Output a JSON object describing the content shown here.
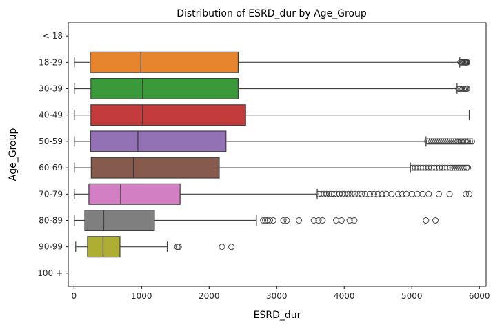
{
  "chart_data": {
    "type": "boxplot",
    "orientation": "horizontal",
    "title": "Distribution of ESRD_dur by Age_Group",
    "xlabel": "ESRD_dur",
    "ylabel": "Age_Group",
    "xlim": [
      -85,
      6100
    ],
    "xticks": [
      0,
      1000,
      2000,
      3000,
      4000,
      5000,
      6000
    ],
    "xtick_labels": [
      "0",
      "1000",
      "2000",
      "3000",
      "4000",
      "5000",
      "6000"
    ],
    "grid": false,
    "categories": [
      "< 18",
      "18-29",
      "30-39",
      "40-49",
      "50-59",
      "60-69",
      "70-79",
      "80-89",
      "90-99",
      "100 +"
    ],
    "boxes": [
      {
        "category": "< 18",
        "empty": true
      },
      {
        "category": "18-29",
        "color": "#e6852d",
        "whisker_low": 5,
        "q1": 240,
        "median": 990,
        "q3": 2430,
        "whisker_high": 5710,
        "outliers": [
          5720,
          5740,
          5760,
          5775,
          5790,
          5800,
          5810,
          5820
        ]
      },
      {
        "category": "30-39",
        "color": "#3a9a3a",
        "whisker_low": 5,
        "q1": 250,
        "median": 1015,
        "q3": 2430,
        "whisker_high": 5670,
        "outliers": [
          5690,
          5710,
          5730,
          5750,
          5770,
          5790,
          5805,
          5820
        ]
      },
      {
        "category": "40-49",
        "color": "#c43b3b",
        "whisker_low": 5,
        "q1": 250,
        "median": 1015,
        "q3": 2540,
        "whisker_high": 5850,
        "outliers": []
      },
      {
        "category": "50-59",
        "color": "#9271b5",
        "whisker_low": 5,
        "q1": 245,
        "median": 945,
        "q3": 2250,
        "whisker_high": 5210,
        "outliers": [
          5230,
          5260,
          5290,
          5320,
          5350,
          5380,
          5410,
          5440,
          5470,
          5500,
          5530,
          5560,
          5590,
          5620,
          5650,
          5680,
          5700,
          5720,
          5740,
          5760,
          5780,
          5800,
          5830,
          5860,
          5890
        ]
      },
      {
        "category": "60-69",
        "color": "#875a4e",
        "whisker_low": 5,
        "q1": 255,
        "median": 880,
        "q3": 2150,
        "whisker_high": 4980,
        "outliers": [
          5010,
          5050,
          5090,
          5130,
          5170,
          5210,
          5250,
          5290,
          5330,
          5370,
          5410,
          5450,
          5490,
          5530,
          5570,
          5600,
          5630,
          5660,
          5690,
          5720,
          5750,
          5780,
          5810,
          5830
        ]
      },
      {
        "category": "70-79",
        "color": "#d27fc3",
        "whisker_low": 5,
        "q1": 220,
        "median": 690,
        "q3": 1570,
        "whisker_high": 3600,
        "outliers": [
          3620,
          3660,
          3700,
          3740,
          3780,
          3810,
          3850,
          3890,
          3930,
          3970,
          4010,
          4060,
          4110,
          4160,
          4210,
          4260,
          4310,
          4380,
          4440,
          4500,
          4560,
          4620,
          4700,
          4800,
          4860,
          4920,
          5000,
          5080,
          5160,
          5250,
          5400,
          5560,
          5800,
          5850
        ]
      },
      {
        "category": "80-89",
        "color": "#7f7f7f",
        "whisker_low": 5,
        "q1": 160,
        "median": 440,
        "q3": 1190,
        "whisker_high": 2700,
        "outliers": [
          2800,
          2830,
          2860,
          2900,
          2950,
          3100,
          3150,
          3330,
          3550,
          3620,
          3680,
          3880,
          3960,
          4080,
          4150,
          5210,
          5350
        ]
      },
      {
        "category": "90-99",
        "color": "#aeae32",
        "whisker_low": 25,
        "q1": 200,
        "median": 430,
        "q3": 680,
        "whisker_high": 1380,
        "outliers": [
          1530,
          1550,
          2190,
          2330
        ]
      },
      {
        "category": "100 +",
        "empty": true
      }
    ]
  }
}
